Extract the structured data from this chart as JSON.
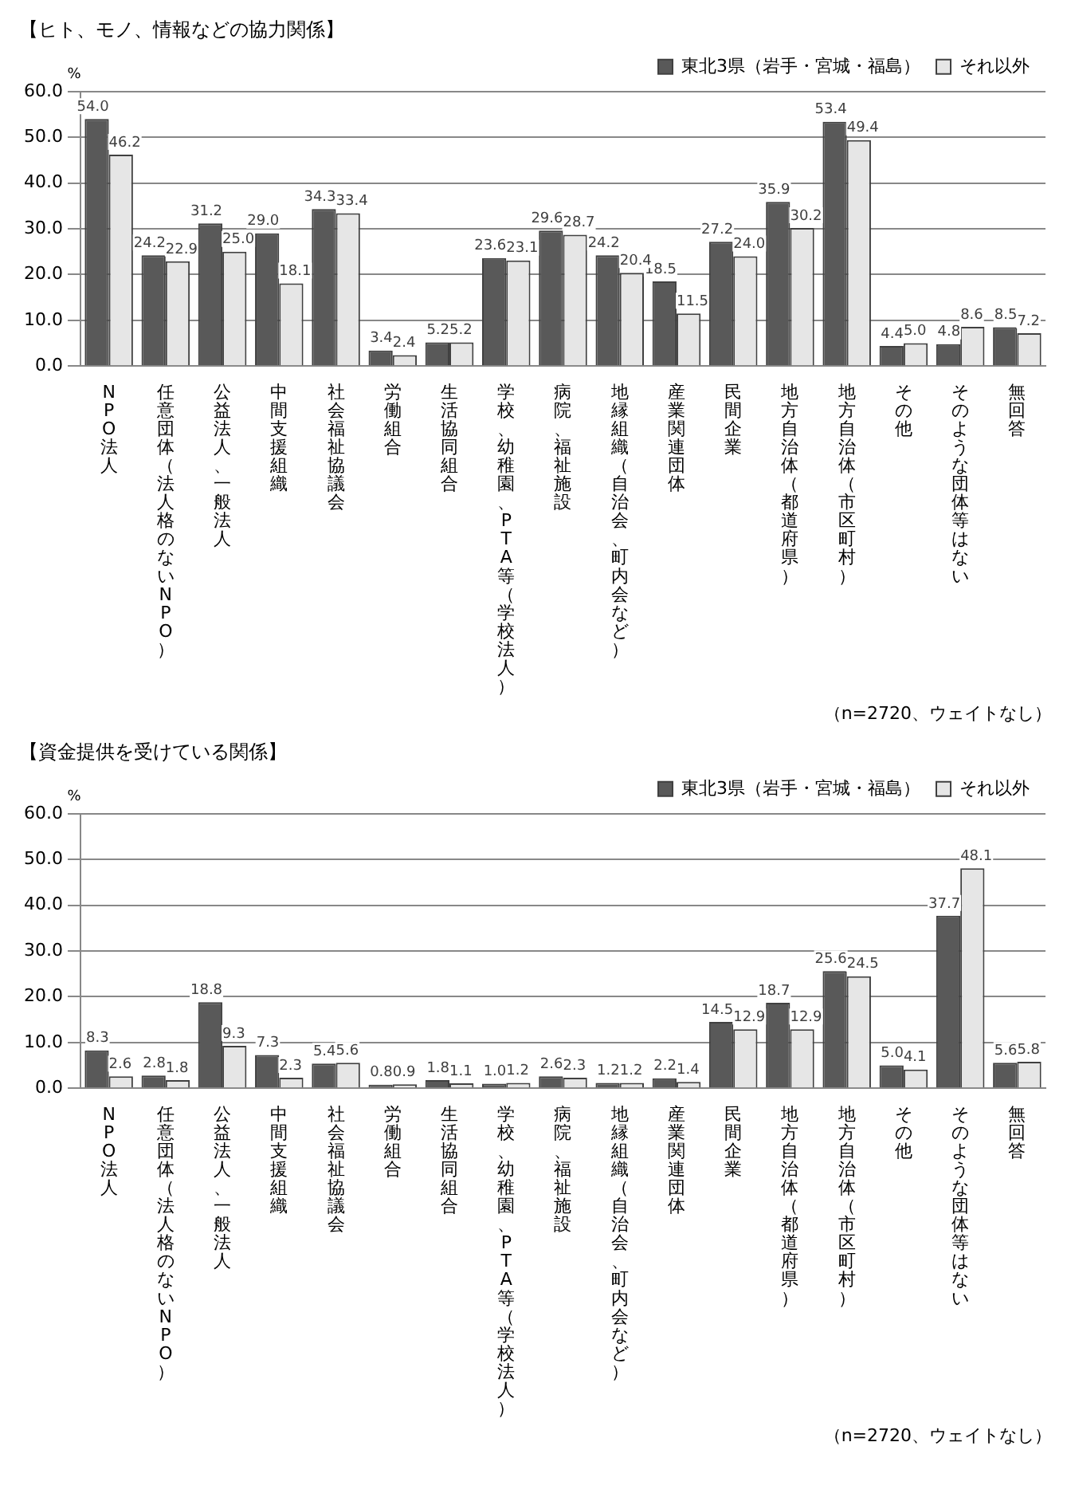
{
  "chart_data": [
    {
      "type": "bar",
      "title": "【ヒト、モノ、情報などの協力関係】",
      "ylabel": "%",
      "categories": [
        "NPO法人",
        "任意団体（法人格のないNPO）",
        "公益法人、一般法人",
        "中間支援組織",
        "社会福祉協議会",
        "労働組合",
        "生活協同組合",
        "学校、幼稚園、PTA等（学校法人）",
        "病院、福祉施設",
        "地縁組織（自治会、町内会など）",
        "産業関連団体",
        "民間企業",
        "地方自治体（都道府県）",
        "地方自治体（市区町村）",
        "その他",
        "そのような団体等はない",
        "無回答"
      ],
      "series": [
        {
          "name": "東北3県（岩手・宮城・福島）",
          "color": "#595959",
          "values": [
            54.0,
            24.2,
            31.2,
            29.0,
            34.3,
            3.4,
            5.2,
            23.6,
            29.6,
            24.2,
            18.5,
            27.2,
            35.9,
            53.4,
            4.4,
            4.8,
            8.5
          ],
          "value_labels": [
            "54.0",
            "24.2",
            "31.2",
            "29.0",
            "34.3",
            "3.4",
            "5.2",
            "23.6",
            "29.6",
            "24.2",
            "18.5",
            "27.2",
            "35.9",
            "53.4",
            "4.4",
            "4.8",
            "8.5"
          ]
        },
        {
          "name": "それ以外",
          "color": "#e6e6e6",
          "values": [
            46.2,
            22.9,
            25.0,
            18.1,
            33.4,
            2.4,
            5.2,
            23.1,
            28.7,
            20.4,
            11.5,
            24.0,
            30.2,
            49.4,
            5.0,
            8.6,
            7.2
          ],
          "value_labels": [
            "46.2",
            "22.9",
            "25.0",
            "18.1",
            "33.4",
            "2.4",
            "5.2",
            "23.1",
            "28.7",
            "20.4",
            "11.5",
            "24.0",
            "30.2",
            "49.4",
            "5.0",
            "8.6",
            "7.2"
          ]
        }
      ],
      "ylim": [
        0,
        60
      ],
      "yticks": [
        {
          "value": 0,
          "label": "0.0"
        },
        {
          "value": 10,
          "label": "10.0"
        },
        {
          "value": 20,
          "label": "20.0"
        },
        {
          "value": 30,
          "label": "30.0"
        },
        {
          "value": 40,
          "label": "40.0"
        },
        {
          "value": 50,
          "label": "50.0"
        },
        {
          "value": 60,
          "label": "60.0"
        }
      ],
      "grid": "y",
      "legend": "top right",
      "annotations": [
        "（n=2720、ウェイトなし）"
      ]
    },
    {
      "type": "bar",
      "title": "【資金提供を受けている関係】",
      "ylabel": "%",
      "categories": [
        "NPO法人",
        "任意団体（法人格のないNPO）",
        "公益法人、一般法人",
        "中間支援組織",
        "社会福祉協議会",
        "労働組合",
        "生活協同組合",
        "学校、幼稚園、PTA等（学校法人）",
        "病院、福祉施設",
        "地縁組織（自治会、町内会など）",
        "産業関連団体",
        "民間企業",
        "地方自治体（都道府県）",
        "地方自治体（市区町村）",
        "その他",
        "そのような団体等はない",
        "無回答"
      ],
      "series": [
        {
          "name": "東北3県（岩手・宮城・福島）",
          "color": "#595959",
          "values": [
            8.3,
            2.8,
            18.8,
            7.3,
            5.4,
            0.8,
            1.8,
            1.0,
            2.6,
            1.2,
            2.2,
            14.5,
            18.7,
            25.6,
            5.0,
            37.7,
            5.6
          ],
          "value_labels": [
            "8.3",
            "2.8",
            "18.8",
            "7.3",
            "5.4",
            "0.8",
            "1.8",
            "1.0",
            "2.6",
            "1.2",
            "2.2",
            "14.5",
            "18.7",
            "25.6",
            "5.0",
            "37.7",
            "5.6"
          ]
        },
        {
          "name": "それ以外",
          "color": "#e6e6e6",
          "values": [
            2.6,
            1.8,
            9.3,
            2.3,
            5.6,
            0.9,
            1.1,
            1.2,
            2.3,
            1.2,
            1.4,
            12.9,
            12.9,
            24.5,
            4.1,
            48.1,
            5.8
          ],
          "value_labels": [
            "2.6",
            "1.8",
            "9.3",
            "2.3",
            "5.6",
            "0.9",
            "1.1",
            "1.2",
            "2.3",
            "1.2",
            "1.4",
            "12.9",
            "12.9",
            "24.5",
            "4.1",
            "48.1",
            "5.8"
          ]
        }
      ],
      "ylim": [
        0,
        60
      ],
      "yticks": [
        {
          "value": 0,
          "label": "0.0"
        },
        {
          "value": 10,
          "label": "10.0"
        },
        {
          "value": 20,
          "label": "20.0"
        },
        {
          "value": 30,
          "label": "30.0"
        },
        {
          "value": 40,
          "label": "40.0"
        },
        {
          "value": 50,
          "label": "50.0"
        },
        {
          "value": 60,
          "label": "60.0"
        }
      ],
      "grid": "y",
      "legend": "top right",
      "annotations": [
        "（n=2720、ウェイトなし）"
      ]
    }
  ]
}
